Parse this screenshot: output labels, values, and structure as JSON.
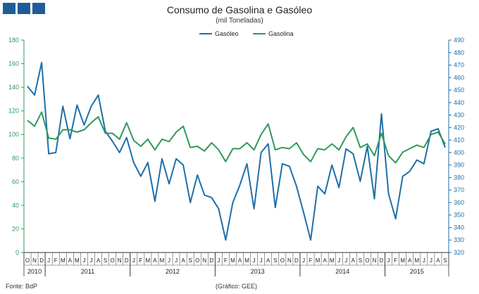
{
  "chart_data": {
    "type": "line",
    "title": "Consumo de Gasolina e Gasóleo",
    "subtitle": "(mil Toneladas)",
    "legend_position": "top",
    "grid": false,
    "y_left": {
      "min": 0,
      "max": 180,
      "ticks": [
        "0",
        "20",
        "40",
        "60",
        "80",
        "100",
        "120",
        "140",
        "160",
        "180"
      ],
      "color": "#2e9a5b"
    },
    "y_right": {
      "min": 320,
      "max": 490,
      "ticks": [
        "320",
        "330",
        "340",
        "350",
        "360",
        "370",
        "380",
        "390",
        "400",
        "410",
        "420",
        "430",
        "440",
        "450",
        "460",
        "470",
        "480",
        "490"
      ],
      "color": "#1f6fa8"
    },
    "months": [
      "O",
      "N",
      "D",
      "J",
      "F",
      "M",
      "A",
      "M",
      "J",
      "J",
      "A",
      "S",
      "O",
      "N",
      "D",
      "J",
      "F",
      "M",
      "A",
      "M",
      "J",
      "J",
      "A",
      "S",
      "O",
      "N",
      "D",
      "J",
      "F",
      "M",
      "A",
      "M",
      "J",
      "J",
      "A",
      "S",
      "O",
      "N",
      "D",
      "J",
      "F",
      "M",
      "A",
      "M",
      "J",
      "J",
      "A",
      "S",
      "O",
      "N",
      "D",
      "J",
      "F",
      "M",
      "A",
      "M",
      "J",
      "J",
      "A",
      "S"
    ],
    "years": [
      {
        "label": "2010",
        "start": 0,
        "count": 3
      },
      {
        "label": "2011",
        "start": 3,
        "count": 12
      },
      {
        "label": "2012",
        "start": 15,
        "count": 12
      },
      {
        "label": "2013",
        "start": 27,
        "count": 12
      },
      {
        "label": "2014",
        "start": 39,
        "count": 12
      },
      {
        "label": "2015",
        "start": 51,
        "count": 9
      }
    ],
    "series": [
      {
        "name": "Gasóleo",
        "axis": "right",
        "color": "#1f6fa8",
        "values": [
          453,
          446,
          472,
          399,
          400,
          437,
          411,
          438,
          422,
          437,
          446,
          417,
          409,
          400,
          412,
          392,
          381,
          392,
          361,
          395,
          375,
          395,
          390,
          360,
          382,
          366,
          364,
          355,
          330,
          360,
          374,
          391,
          355,
          400,
          407,
          356,
          391,
          389,
          373,
          352,
          330,
          373,
          367,
          390,
          372,
          403,
          399,
          377,
          405,
          363,
          431,
          367,
          347,
          381,
          385,
          394,
          391,
          417,
          419,
          404
        ]
      },
      {
        "name": "Gasolina",
        "axis": "left",
        "color": "#2e9a5b",
        "values": [
          112,
          107,
          119,
          97,
          96,
          104,
          104,
          102,
          104,
          110,
          115,
          101,
          101,
          96,
          110,
          95,
          90,
          96,
          87,
          96,
          94,
          102,
          107,
          89,
          90,
          86,
          93,
          87,
          77,
          88,
          88,
          93,
          87,
          100,
          109,
          87,
          89,
          88,
          93,
          83,
          77,
          88,
          87,
          92,
          87,
          98,
          106,
          89,
          92,
          82,
          101,
          82,
          76,
          85,
          88,
          91,
          89,
          100,
          102,
          92
        ]
      }
    ]
  },
  "footer": {
    "source": "Fonte: BdP",
    "credit": "(Gráfico: GEE)"
  }
}
